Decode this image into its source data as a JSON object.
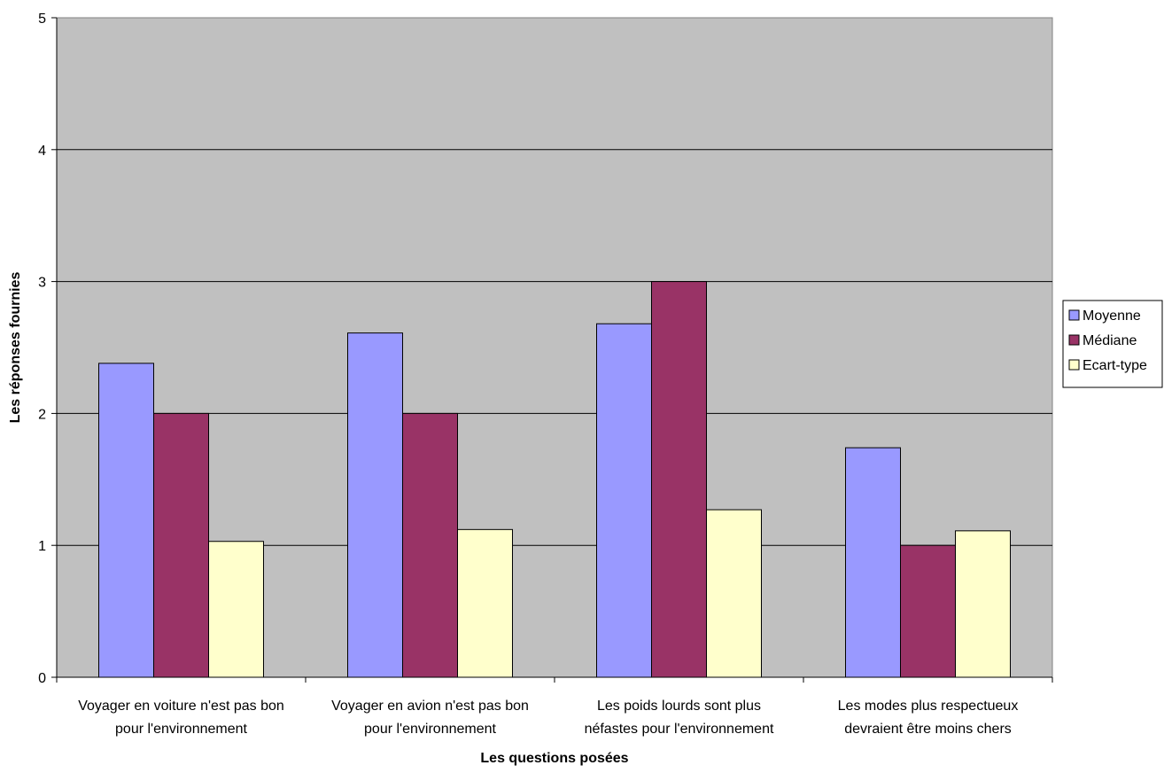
{
  "chart_data": {
    "type": "bar",
    "title": "",
    "xlabel": "Les questions posées",
    "ylabel": "Les réponses fournies",
    "ylim": [
      0,
      5
    ],
    "yticks": [
      0,
      1,
      2,
      3,
      4,
      5
    ],
    "grid": true,
    "legend_position": "right",
    "plot_background": "#c0c0c0",
    "categories": [
      [
        "Voyager en voiture n'est pas bon",
        "pour l'environnement"
      ],
      [
        "Voyager en avion n'est pas bon",
        "pour l'environnement"
      ],
      [
        "Les poids lourds sont plus",
        "néfastes pour l'environnement"
      ],
      [
        "Les modes plus respectueux",
        "devraient être moins chers"
      ]
    ],
    "series": [
      {
        "name": "Moyenne",
        "color": "#9999ff",
        "values": [
          2.38,
          2.61,
          2.68,
          1.74
        ]
      },
      {
        "name": "Médiane",
        "color": "#993366",
        "values": [
          2,
          2,
          3,
          1
        ]
      },
      {
        "name": "Ecart-type",
        "color": "#ffffcc",
        "values": [
          1.03,
          1.12,
          1.27,
          1.11
        ]
      }
    ]
  }
}
